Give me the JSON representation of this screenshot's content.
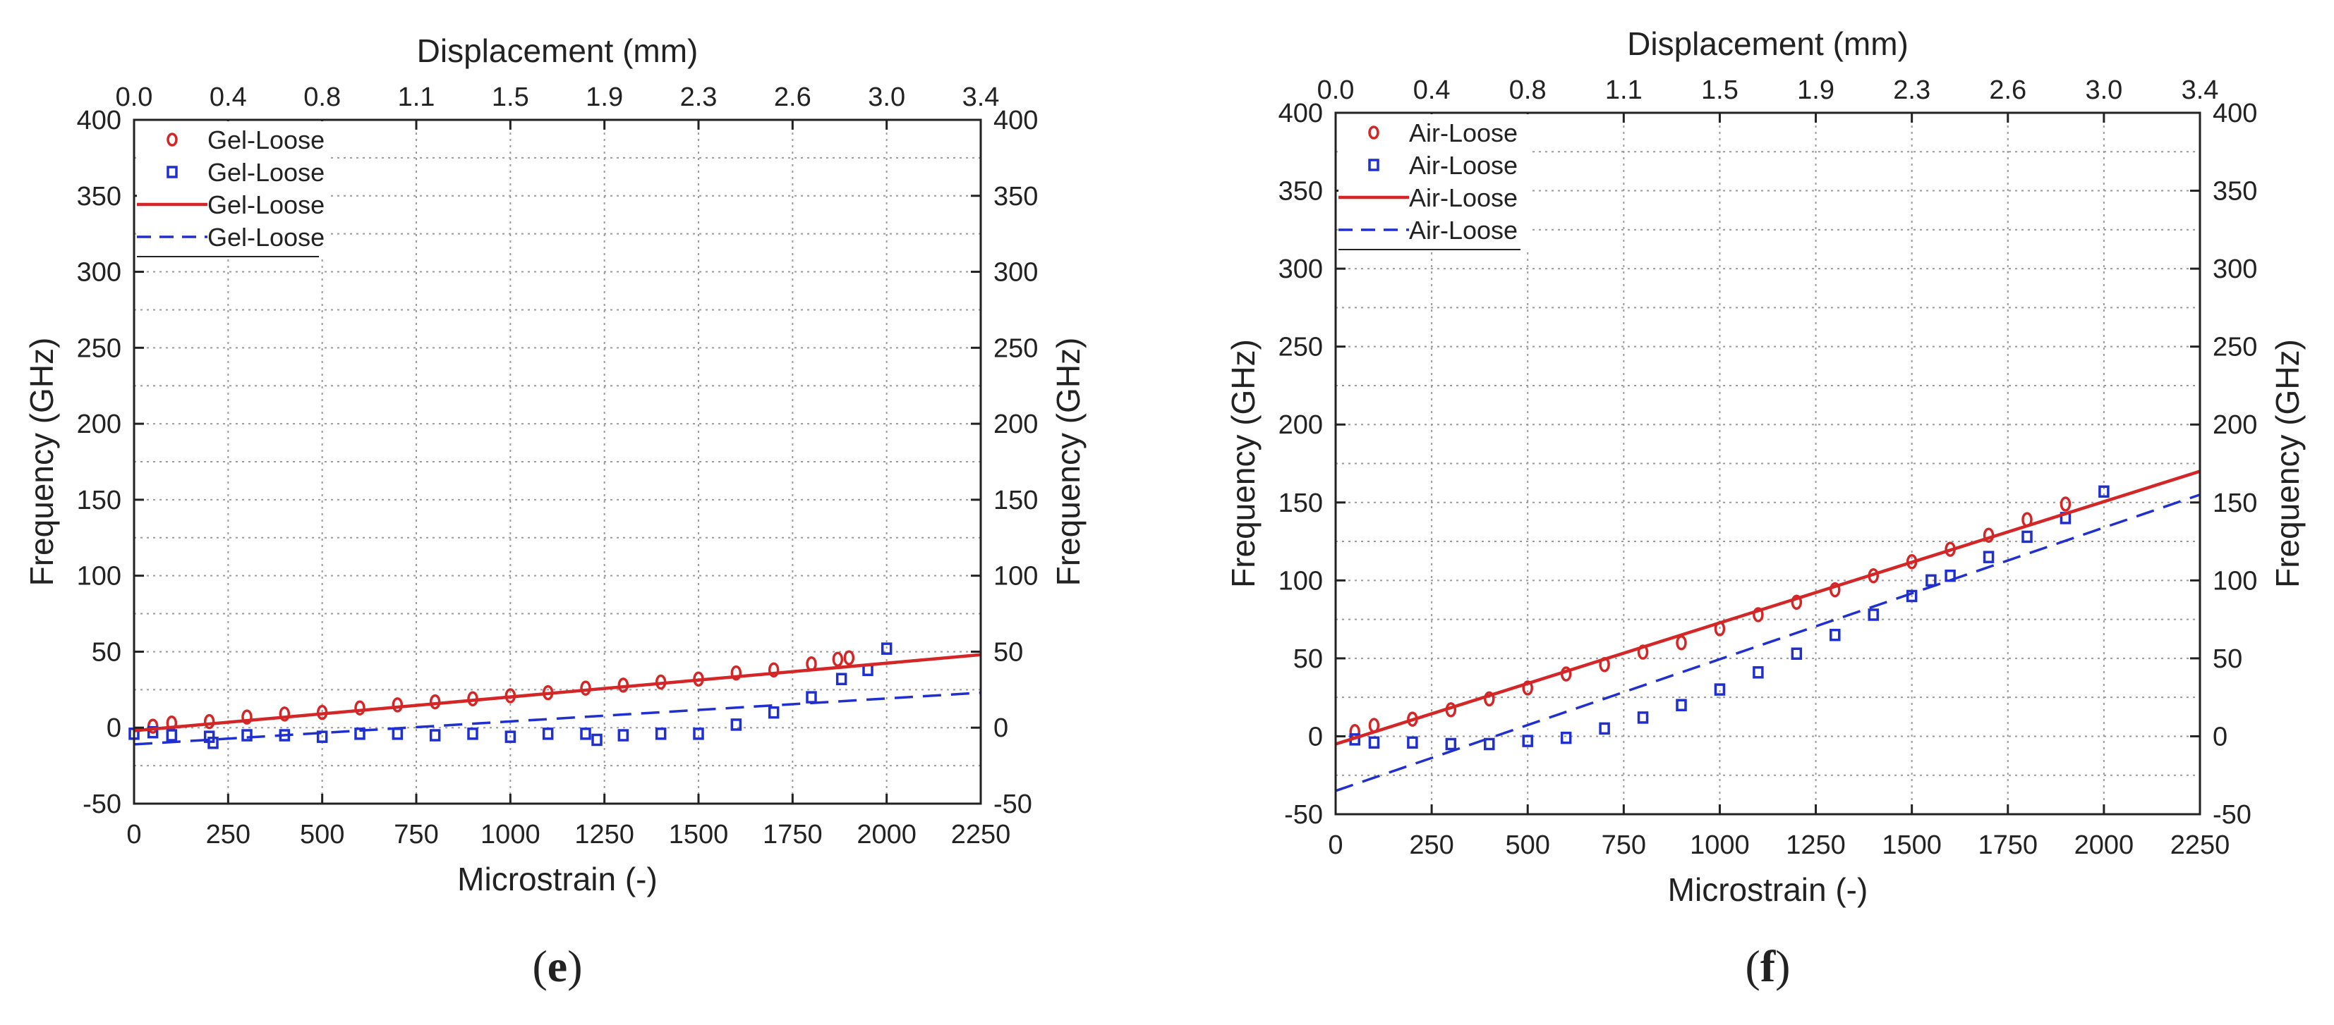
{
  "colors": {
    "red": "#d42626",
    "blue": "#1f2fd0",
    "grid": "#9a9a9a",
    "axis": "#222222"
  },
  "chart_data": [
    {
      "type": "scatter",
      "panel": "(e)",
      "panel_letter": "e",
      "xlabel": "Microstrain (-)",
      "ylabel": "Frequency (GHz)",
      "ylabel_right": "Frequency (GHz)",
      "x2label": "Displacement (mm)",
      "xlim": [
        0,
        2250
      ],
      "ylim": [
        -50,
        400
      ],
      "xticks": [
        0,
        250,
        500,
        750,
        1000,
        1250,
        1500,
        1750,
        2000,
        2250
      ],
      "yticks": [
        -50,
        0,
        50,
        100,
        150,
        200,
        250,
        300,
        350,
        400
      ],
      "x2ticks": [
        "0.0",
        "0.4",
        "0.8",
        "1.1",
        "1.5",
        "1.9",
        "2.3",
        "2.6",
        "3.0",
        "3.4"
      ],
      "legend": [
        {
          "label": "Gel-Loose",
          "kind": "circle",
          "color": "red"
        },
        {
          "label": "Gel-Loose",
          "kind": "square",
          "color": "blue"
        },
        {
          "label": "Gel-Loose",
          "kind": "solid",
          "color": "red"
        },
        {
          "label": "Gel-Loose",
          "kind": "dash",
          "color": "blue"
        }
      ],
      "series": [
        {
          "name": "Gel-Loose",
          "kind": "circle",
          "color": "red",
          "x": [
            50,
            100,
            200,
            300,
            400,
            500,
            600,
            700,
            800,
            900,
            1000,
            1100,
            1200,
            1300,
            1400,
            1500,
            1600,
            1700,
            1800,
            1870,
            1900
          ],
          "y": [
            1,
            3,
            4,
            7,
            9,
            10,
            13,
            15,
            17,
            19,
            21,
            23,
            26,
            28,
            30,
            32,
            36,
            38,
            42,
            45,
            46
          ]
        },
        {
          "name": "Gel-Loose",
          "kind": "square",
          "color": "blue",
          "x": [
            0,
            50,
            100,
            200,
            210,
            300,
            400,
            500,
            600,
            700,
            800,
            900,
            1000,
            1100,
            1200,
            1230,
            1300,
            1400,
            1500,
            1600,
            1700,
            1800,
            1880,
            1950,
            2000
          ],
          "y": [
            -4,
            -3,
            -5,
            -6,
            -10,
            -5,
            -5,
            -6,
            -4,
            -4,
            -5,
            -4,
            -6,
            -4,
            -4,
            -8,
            -5,
            -4,
            -4,
            2,
            10,
            20,
            32,
            38,
            52
          ]
        },
        {
          "name": "Gel-Loose",
          "kind": "line",
          "color": "red",
          "dash": false,
          "x": [
            0,
            2250
          ],
          "y": [
            -2,
            48
          ]
        },
        {
          "name": "Gel-Loose",
          "kind": "line",
          "color": "blue",
          "dash": true,
          "x": [
            0,
            2250
          ],
          "y": [
            -11,
            23
          ]
        }
      ]
    },
    {
      "type": "scatter",
      "panel": "(f)",
      "panel_letter": "f",
      "xlabel": "Microstrain (-)",
      "ylabel": "Frequency (GHz)",
      "ylabel_right": "Frequency (GHz)",
      "x2label": "Displacement (mm)",
      "xlim": [
        0,
        2250
      ],
      "ylim": [
        -50,
        400
      ],
      "xticks": [
        0,
        250,
        500,
        750,
        1000,
        1250,
        1500,
        1750,
        2000,
        2250
      ],
      "yticks": [
        -50,
        0,
        50,
        100,
        150,
        200,
        250,
        300,
        350,
        400
      ],
      "x2ticks": [
        "0.0",
        "0.4",
        "0.8",
        "1.1",
        "1.5",
        "1.9",
        "2.3",
        "2.6",
        "3.0",
        "3.4"
      ],
      "legend": [
        {
          "label": "Air-Loose",
          "kind": "circle",
          "color": "red"
        },
        {
          "label": "Air-Loose",
          "kind": "square",
          "color": "blue"
        },
        {
          "label": "Air-Loose",
          "kind": "solid",
          "color": "red"
        },
        {
          "label": "Air-Loose",
          "kind": "dash",
          "color": "blue"
        }
      ],
      "series": [
        {
          "name": "Air-Loose",
          "kind": "circle",
          "color": "red",
          "x": [
            50,
            100,
            200,
            300,
            400,
            500,
            600,
            700,
            800,
            900,
            1000,
            1100,
            1200,
            1300,
            1400,
            1500,
            1600,
            1700,
            1800,
            1900
          ],
          "y": [
            3,
            7,
            11,
            17,
            24,
            31,
            40,
            46,
            54,
            60,
            69,
            78,
            86,
            94,
            103,
            112,
            120,
            129,
            139,
            149
          ]
        },
        {
          "name": "Air-Loose",
          "kind": "square",
          "color": "blue",
          "x": [
            50,
            100,
            200,
            300,
            400,
            500,
            600,
            700,
            800,
            900,
            1000,
            1100,
            1200,
            1300,
            1400,
            1500,
            1550,
            1600,
            1700,
            1800,
            1900,
            2000
          ],
          "y": [
            -2,
            -4,
            -4,
            -5,
            -5,
            -3,
            -1,
            5,
            12,
            20,
            30,
            41,
            53,
            65,
            78,
            90,
            100,
            103,
            115,
            128,
            140,
            157
          ]
        },
        {
          "name": "Air-Loose",
          "kind": "line",
          "color": "red",
          "dash": false,
          "x": [
            0,
            2250
          ],
          "y": [
            -5,
            170
          ]
        },
        {
          "name": "Air-Loose",
          "kind": "line",
          "color": "blue",
          "dash": true,
          "x": [
            0,
            2250
          ],
          "y": [
            -35,
            155
          ]
        }
      ]
    }
  ]
}
